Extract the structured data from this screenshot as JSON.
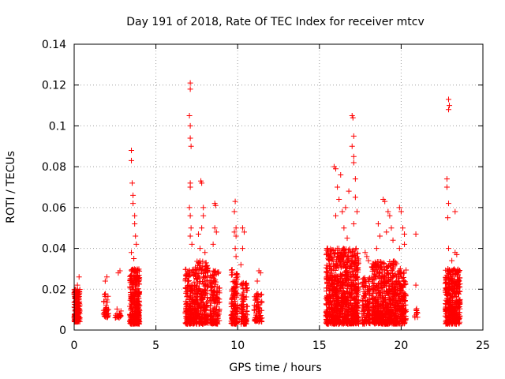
{
  "chart_data": {
    "type": "scatter",
    "title": "Day 191 of 2018, Rate Of TEC Index for receiver mtcv",
    "xlabel": "GPS time / hours",
    "ylabel": "ROTI / TECUs",
    "xlim": [
      0,
      25
    ],
    "ylim": [
      0,
      0.14
    ],
    "xticks": [
      0,
      5,
      10,
      15,
      20,
      25
    ],
    "xtick_labels": [
      "0",
      "5",
      "10",
      "15",
      "20",
      "25"
    ],
    "yticks": [
      0,
      0.02,
      0.04,
      0.06,
      0.08,
      0.1,
      0.12,
      0.14
    ],
    "ytick_labels": [
      "0",
      "0.02",
      "0.04",
      "0.06",
      "0.08",
      "0.1",
      "0.12",
      "0.14"
    ],
    "grid": true,
    "marker": "+",
    "color": "#ff0000",
    "series": [
      {
        "name": "ROTI",
        "clusters": [
          {
            "x_range": [
              0.0,
              0.35
            ],
            "y_range": [
              0.004,
              0.02
            ],
            "count": 160,
            "outliers": [
              [
                0.2,
                0.022
              ],
              [
                0.3,
                0.026
              ]
            ]
          },
          {
            "x_range": [
              1.8,
              2.1
            ],
            "y_range": [
              0.006,
              0.018
            ],
            "count": 40,
            "outliers": [
              [
                1.9,
                0.024
              ],
              [
                2.0,
                0.026
              ]
            ]
          },
          {
            "x_range": [
              2.5,
              2.9
            ],
            "y_range": [
              0.006,
              0.012
            ],
            "count": 20,
            "outliers": [
              [
                2.7,
                0.028
              ],
              [
                2.8,
                0.029
              ]
            ]
          },
          {
            "x_range": [
              3.4,
              4.0
            ],
            "y_range": [
              0.003,
              0.03
            ],
            "count": 320,
            "outliers": [
              [
                3.5,
                0.088
              ],
              [
                3.5,
                0.083
              ],
              [
                3.55,
                0.072
              ],
              [
                3.6,
                0.066
              ],
              [
                3.6,
                0.062
              ],
              [
                3.7,
                0.056
              ],
              [
                3.7,
                0.052
              ],
              [
                3.75,
                0.046
              ],
              [
                3.8,
                0.042
              ],
              [
                3.5,
                0.038
              ],
              [
                3.65,
                0.035
              ]
            ]
          },
          {
            "x_range": [
              6.8,
              7.4
            ],
            "y_range": [
              0.003,
              0.03
            ],
            "count": 200,
            "outliers": [
              [
                7.1,
                0.121
              ],
              [
                7.1,
                0.118
              ],
              [
                7.05,
                0.105
              ],
              [
                7.1,
                0.1
              ],
              [
                7.1,
                0.094
              ],
              [
                7.15,
                0.09
              ],
              [
                7.1,
                0.072
              ],
              [
                7.1,
                0.07
              ],
              [
                7.05,
                0.06
              ],
              [
                7.1,
                0.056
              ],
              [
                7.15,
                0.05
              ],
              [
                7.1,
                0.046
              ],
              [
                7.2,
                0.042
              ]
            ]
          },
          {
            "x_range": [
              7.4,
              8.2
            ],
            "y_range": [
              0.003,
              0.034
            ],
            "count": 240,
            "outliers": [
              [
                7.75,
                0.073
              ],
              [
                7.8,
                0.072
              ],
              [
                7.9,
                0.06
              ],
              [
                7.9,
                0.056
              ],
              [
                7.6,
                0.047
              ],
              [
                7.8,
                0.05
              ],
              [
                7.7,
                0.04
              ],
              [
                8.0,
                0.038
              ]
            ]
          },
          {
            "x_range": [
              8.3,
              8.9
            ],
            "y_range": [
              0.003,
              0.03
            ],
            "count": 150,
            "outliers": [
              [
                8.6,
                0.062
              ],
              [
                8.65,
                0.061
              ],
              [
                8.6,
                0.05
              ],
              [
                8.7,
                0.048
              ],
              [
                8.5,
                0.042
              ]
            ]
          },
          {
            "x_range": [
              9.6,
              10.0
            ],
            "y_range": [
              0.003,
              0.03
            ],
            "count": 140,
            "outliers": [
              [
                9.85,
                0.063
              ],
              [
                9.8,
                0.058
              ],
              [
                9.9,
                0.05
              ],
              [
                9.8,
                0.048
              ],
              [
                9.9,
                0.046
              ],
              [
                9.85,
                0.04
              ],
              [
                9.9,
                0.036
              ]
            ]
          },
          {
            "x_range": [
              10.2,
              10.6
            ],
            "y_range": [
              0.003,
              0.024
            ],
            "count": 90,
            "outliers": [
              [
                10.3,
                0.05
              ],
              [
                10.4,
                0.048
              ],
              [
                10.3,
                0.04
              ],
              [
                10.2,
                0.032
              ]
            ]
          },
          {
            "x_range": [
              11.0,
              11.5
            ],
            "y_range": [
              0.004,
              0.018
            ],
            "count": 70,
            "outliers": [
              [
                11.3,
                0.029
              ],
              [
                11.4,
                0.028
              ],
              [
                11.2,
                0.024
              ]
            ]
          },
          {
            "x_range": [
              15.4,
              17.4
            ],
            "y_range": [
              0.003,
              0.04
            ],
            "count": 900,
            "outliers": [
              [
                15.6,
                0.036
              ],
              [
                15.5,
                0.04
              ],
              [
                15.9,
                0.08
              ],
              [
                16.0,
                0.079
              ],
              [
                16.3,
                0.076
              ],
              [
                16.1,
                0.07
              ],
              [
                16.2,
                0.064
              ],
              [
                16.4,
                0.058
              ],
              [
                16.6,
                0.06
              ],
              [
                16.8,
                0.068
              ],
              [
                17.0,
                0.105
              ],
              [
                17.05,
                0.104
              ],
              [
                17.1,
                0.095
              ],
              [
                17.0,
                0.09
              ],
              [
                17.1,
                0.085
              ],
              [
                17.1,
                0.082
              ],
              [
                17.2,
                0.074
              ],
              [
                17.2,
                0.065
              ],
              [
                17.3,
                0.058
              ],
              [
                17.1,
                0.052
              ],
              [
                16.5,
                0.05
              ],
              [
                16.0,
                0.056
              ],
              [
                16.7,
                0.045
              ]
            ]
          },
          {
            "x_range": [
              17.6,
              18.1
            ],
            "y_range": [
              0.003,
              0.026
            ],
            "count": 120,
            "outliers": [
              [
                17.8,
                0.038
              ],
              [
                17.9,
                0.036
              ],
              [
                18.0,
                0.034
              ]
            ]
          },
          {
            "x_range": [
              18.2,
              19.8
            ],
            "y_range": [
              0.003,
              0.034
            ],
            "count": 600,
            "outliers": [
              [
                18.9,
                0.064
              ],
              [
                19.0,
                0.063
              ],
              [
                19.2,
                0.058
              ],
              [
                19.3,
                0.056
              ],
              [
                18.6,
                0.052
              ],
              [
                19.4,
                0.05
              ],
              [
                18.7,
                0.046
              ],
              [
                19.1,
                0.048
              ],
              [
                19.5,
                0.044
              ],
              [
                18.5,
                0.04
              ]
            ]
          },
          {
            "x_range": [
              19.8,
              20.3
            ],
            "y_range": [
              0.003,
              0.03
            ],
            "count": 160,
            "outliers": [
              [
                19.9,
                0.06
              ],
              [
                20.0,
                0.058
              ],
              [
                20.1,
                0.05
              ],
              [
                20.2,
                0.047
              ],
              [
                20.2,
                0.042
              ],
              [
                19.9,
                0.04
              ]
            ]
          },
          {
            "x_range": [
              20.8,
              21.0
            ],
            "y_range": [
              0.006,
              0.012
            ],
            "count": 10,
            "outliers": [
              [
                20.9,
                0.047
              ],
              [
                20.9,
                0.022
              ]
            ]
          },
          {
            "x_range": [
              22.7,
              23.6
            ],
            "y_range": [
              0.003,
              0.03
            ],
            "count": 380,
            "outliers": [
              [
                22.9,
                0.113
              ],
              [
                22.95,
                0.11
              ],
              [
                22.9,
                0.108
              ],
              [
                22.8,
                0.074
              ],
              [
                22.8,
                0.07
              ],
              [
                22.9,
                0.062
              ],
              [
                22.85,
                0.055
              ],
              [
                23.3,
                0.058
              ],
              [
                22.9,
                0.04
              ],
              [
                23.3,
                0.038
              ],
              [
                23.4,
                0.037
              ],
              [
                23.1,
                0.034
              ]
            ]
          }
        ]
      }
    ]
  }
}
